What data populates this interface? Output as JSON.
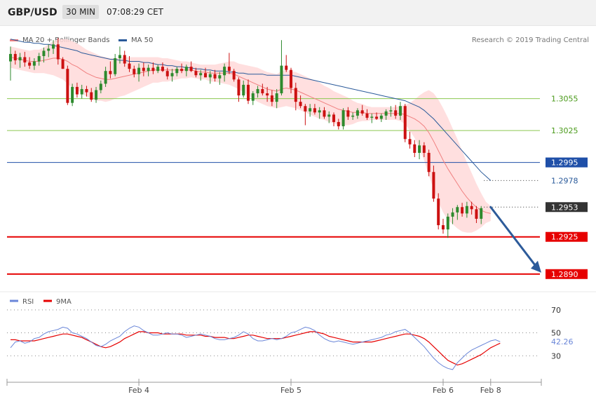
{
  "header": {
    "symbol": "GBP/USD",
    "timeframe": "30 MIN",
    "time": "07:08:29 CET"
  },
  "legend": {
    "ma20_label": "MA 20 + Bollinger Bands",
    "ma50_label": "MA 50",
    "rsi_label": "RSI",
    "ma9_label": "9MA",
    "credit": "Research © 2019 Trading Central"
  },
  "colors": {
    "bull": "#2d8a2d",
    "bear": "#cc1111",
    "ma20": "#f08080",
    "band_fill": "#ffd9d9",
    "ma50": "#2a5a9a",
    "resistance": "#8cc850",
    "pivot": "#1f4fa8",
    "support": "#e60000",
    "current": "#333333",
    "arrow": "#2d5b9a",
    "rsi": "#6a86d8",
    "rsi_ma": "#e60000"
  },
  "chart_data": [
    {
      "type": "candlestick",
      "panel": "price",
      "ylim": [
        1.2876,
        1.3124
      ],
      "x_ticks": [
        {
          "label": "Feb 4",
          "index": 27
        },
        {
          "label": "Feb 5",
          "index": 59
        },
        {
          "label": "Feb 6",
          "index": 91
        },
        {
          "label": "Feb 8",
          "index": 101
        }
      ],
      "levels": [
        {
          "value": 1.3055,
          "label": "1.3055",
          "kind": "resistance"
        },
        {
          "value": 1.3025,
          "label": "1.3025",
          "kind": "resistance"
        },
        {
          "value": 1.2995,
          "label": "1.2995",
          "kind": "pivot"
        },
        {
          "value": 1.2978,
          "label": "1.2978",
          "kind": "ma50"
        },
        {
          "value": 1.2953,
          "label": "1.2953",
          "kind": "current"
        },
        {
          "value": 1.2925,
          "label": "1.2925",
          "kind": "support"
        },
        {
          "value": 1.289,
          "label": "1.2890",
          "kind": "support"
        }
      ],
      "projection": {
        "from_index": 101,
        "from_value": 1.2953,
        "to_index": 110,
        "to_value": 1.289
      },
      "ohlc": [
        [
          1.309,
          1.3104,
          1.3072,
          1.3097
        ],
        [
          1.3097,
          1.31,
          1.3087,
          1.3091
        ],
        [
          1.3091,
          1.3098,
          1.3084,
          1.3094
        ],
        [
          1.3094,
          1.3099,
          1.3085,
          1.3089
        ],
        [
          1.3089,
          1.3094,
          1.3083,
          1.3086
        ],
        [
          1.3086,
          1.3093,
          1.3082,
          1.309
        ],
        [
          1.309,
          1.3098,
          1.3086,
          1.3095
        ],
        [
          1.3095,
          1.3103,
          1.3089,
          1.31
        ],
        [
          1.31,
          1.3106,
          1.3094,
          1.3102
        ],
        [
          1.3102,
          1.311,
          1.3097,
          1.3106
        ],
        [
          1.3106,
          1.3112,
          1.3087,
          1.3092
        ],
        [
          1.3092,
          1.3094,
          1.3083,
          1.3083
        ],
        [
          1.3083,
          1.3086,
          1.3049,
          1.3051
        ],
        [
          1.3051,
          1.3069,
          1.3048,
          1.3066
        ],
        [
          1.3066,
          1.307,
          1.3056,
          1.3059
        ],
        [
          1.3059,
          1.3068,
          1.3055,
          1.3064
        ],
        [
          1.3064,
          1.3067,
          1.3057,
          1.3061
        ],
        [
          1.3061,
          1.3065,
          1.3052,
          1.3054
        ],
        [
          1.3054,
          1.3066,
          1.3051,
          1.3063
        ],
        [
          1.3063,
          1.3072,
          1.306,
          1.3069
        ],
        [
          1.3069,
          1.3085,
          1.3066,
          1.3081
        ],
        [
          1.3081,
          1.309,
          1.3074,
          1.3078
        ],
        [
          1.3078,
          1.3097,
          1.3076,
          1.3093
        ],
        [
          1.3093,
          1.3104,
          1.3088,
          1.3096
        ],
        [
          1.3096,
          1.31,
          1.3085,
          1.3088
        ],
        [
          1.3088,
          1.3095,
          1.308,
          1.3083
        ],
        [
          1.3083,
          1.3086,
          1.3075,
          1.3078
        ],
        [
          1.3078,
          1.3088,
          1.3071,
          1.3084
        ],
        [
          1.3084,
          1.3089,
          1.3076,
          1.3081
        ],
        [
          1.3081,
          1.3087,
          1.3076,
          1.3084
        ],
        [
          1.3084,
          1.3089,
          1.3078,
          1.3081
        ],
        [
          1.3081,
          1.3087,
          1.3079,
          1.3085
        ],
        [
          1.3085,
          1.3089,
          1.308,
          1.3081
        ],
        [
          1.3081,
          1.3084,
          1.3073,
          1.3076
        ],
        [
          1.3076,
          1.3083,
          1.3071,
          1.3079
        ],
        [
          1.3079,
          1.3085,
          1.3076,
          1.3083
        ],
        [
          1.3083,
          1.3088,
          1.3079,
          1.3081
        ],
        [
          1.3081,
          1.3087,
          1.3076,
          1.3085
        ],
        [
          1.3085,
          1.309,
          1.308,
          1.3081
        ],
        [
          1.3081,
          1.3084,
          1.3075,
          1.3077
        ],
        [
          1.3077,
          1.3082,
          1.3072,
          1.3079
        ],
        [
          1.3079,
          1.3084,
          1.3075,
          1.3075
        ],
        [
          1.3075,
          1.3081,
          1.3069,
          1.3078
        ],
        [
          1.3078,
          1.3082,
          1.3071,
          1.3074
        ],
        [
          1.3074,
          1.308,
          1.3068,
          1.3077
        ],
        [
          1.3077,
          1.3088,
          1.3071,
          1.3085
        ],
        [
          1.3085,
          1.3098,
          1.3078,
          1.3081
        ],
        [
          1.3081,
          1.3083,
          1.3071,
          1.3073
        ],
        [
          1.3073,
          1.3075,
          1.3052,
          1.3058
        ],
        [
          1.3058,
          1.3072,
          1.3056,
          1.3068
        ],
        [
          1.3068,
          1.3073,
          1.305,
          1.3053
        ],
        [
          1.3053,
          1.3062,
          1.3049,
          1.306
        ],
        [
          1.306,
          1.3067,
          1.3056,
          1.3064
        ],
        [
          1.3064,
          1.3069,
          1.3058,
          1.306
        ],
        [
          1.306,
          1.3066,
          1.3052,
          1.3058
        ],
        [
          1.3058,
          1.3063,
          1.3048,
          1.3052
        ],
        [
          1.3052,
          1.3064,
          1.3046,
          1.306
        ],
        [
          1.306,
          1.311,
          1.3058,
          1.3086
        ],
        [
          1.3086,
          1.3096,
          1.308,
          1.3082
        ],
        [
          1.3082,
          1.3084,
          1.306,
          1.3065
        ],
        [
          1.3065,
          1.307,
          1.3044,
          1.3052
        ],
        [
          1.3052,
          1.3058,
          1.3046,
          1.3048
        ],
        [
          1.3048,
          1.305,
          1.303,
          1.3043
        ],
        [
          1.3043,
          1.305,
          1.3038,
          1.3046
        ],
        [
          1.3046,
          1.305,
          1.304,
          1.3042
        ],
        [
          1.3042,
          1.3047,
          1.3036,
          1.3044
        ],
        [
          1.3044,
          1.3047,
          1.3036,
          1.3038
        ],
        [
          1.3038,
          1.3043,
          1.3032,
          1.304
        ],
        [
          1.304,
          1.3042,
          1.3029,
          1.3033
        ],
        [
          1.3033,
          1.3036,
          1.3026,
          1.3029
        ],
        [
          1.3029,
          1.3046,
          1.3026,
          1.3044
        ],
        [
          1.3044,
          1.3047,
          1.3035,
          1.3038
        ],
        [
          1.3038,
          1.3042,
          1.3035,
          1.3039
        ],
        [
          1.3039,
          1.3046,
          1.3036,
          1.3044
        ],
        [
          1.3044,
          1.3049,
          1.3039,
          1.3041
        ],
        [
          1.3041,
          1.3045,
          1.3035,
          1.3037
        ],
        [
          1.3037,
          1.3041,
          1.3032,
          1.3038
        ],
        [
          1.3038,
          1.3042,
          1.3035,
          1.3036
        ],
        [
          1.3036,
          1.3041,
          1.3033,
          1.3039
        ],
        [
          1.3039,
          1.3045,
          1.3035,
          1.3043
        ],
        [
          1.3043,
          1.3048,
          1.3038,
          1.3044
        ],
        [
          1.3044,
          1.3049,
          1.3036,
          1.3039
        ],
        [
          1.3039,
          1.3052,
          1.3035,
          1.3048
        ],
        [
          1.3048,
          1.305,
          1.3014,
          1.3017
        ],
        [
          1.3017,
          1.3024,
          1.3008,
          1.3012
        ],
        [
          1.3012,
          1.3016,
          1.3,
          1.3004
        ],
        [
          1.3004,
          1.3016,
          1.2998,
          1.3011
        ],
        [
          1.3011,
          1.3014,
          1.3,
          1.3004
        ],
        [
          1.3004,
          1.3007,
          1.2982,
          1.2986
        ],
        [
          1.2986,
          1.2992,
          1.2958,
          1.2961
        ],
        [
          1.2961,
          1.2966,
          1.2932,
          1.2936
        ],
        [
          1.2936,
          1.2942,
          1.2928,
          1.2932
        ],
        [
          1.2932,
          1.2947,
          1.2924,
          1.2944
        ],
        [
          1.2944,
          1.2952,
          1.2937,
          1.2948
        ],
        [
          1.2948,
          1.2955,
          1.2941,
          1.2953
        ],
        [
          1.2953,
          1.2957,
          1.2944,
          1.2947
        ],
        [
          1.2947,
          1.2958,
          1.2943,
          1.2954
        ],
        [
          1.2954,
          1.2958,
          1.2946,
          1.2951
        ],
        [
          1.2951,
          1.2954,
          1.2938,
          1.2942
        ],
        [
          1.2942,
          1.2954,
          1.2937,
          1.2952
        ]
      ],
      "ma20": [
        1.3094,
        1.3093,
        1.3092,
        1.3091,
        1.309,
        1.309,
        1.309,
        1.3091,
        1.3092,
        1.3093,
        1.3093,
        1.3092,
        1.309,
        1.3087,
        1.3085,
        1.3082,
        1.3079,
        1.3077,
        1.3075,
        1.3074,
        1.3073,
        1.3073,
        1.3074,
        1.3075,
        1.3076,
        1.3077,
        1.3078,
        1.3079,
        1.308,
        1.3081,
        1.3082,
        1.3082,
        1.3082,
        1.3082,
        1.3082,
        1.3082,
        1.3082,
        1.3082,
        1.3082,
        1.3081,
        1.308,
        1.308,
        1.3079,
        1.3079,
        1.3079,
        1.3079,
        1.3079,
        1.3078,
        1.3076,
        1.3074,
        1.3072,
        1.307,
        1.3068,
        1.3066,
        1.3064,
        1.3063,
        1.3062,
        1.3064,
        1.3065,
        1.3064,
        1.3063,
        1.3061,
        1.3059,
        1.3057,
        1.3055,
        1.3053,
        1.3051,
        1.3049,
        1.3047,
        1.3045,
        1.3044,
        1.3043,
        1.3042,
        1.3042,
        1.3042,
        1.3041,
        1.3041,
        1.3041,
        1.3041,
        1.3041,
        1.3041,
        1.3041,
        1.3041,
        1.304,
        1.3038,
        1.3036,
        1.3033,
        1.3029,
        1.3023,
        1.3015,
        1.3006,
        1.2997,
        1.2989,
        1.2982,
        1.2975,
        1.2968,
        1.2962,
        1.2957,
        1.2953,
        1.295,
        1.2948,
        1.2947
      ],
      "band_width": [
        0.001,
        0.001,
        0.001,
        0.001,
        0.001,
        0.0011,
        0.0011,
        0.0012,
        0.0014,
        0.0016,
        0.0018,
        0.0019,
        0.0021,
        0.0022,
        0.0022,
        0.0022,
        0.0022,
        0.0022,
        0.0022,
        0.0021,
        0.0021,
        0.002,
        0.0019,
        0.0018,
        0.0018,
        0.0017,
        0.0016,
        0.0015,
        0.0014,
        0.0013,
        0.0012,
        0.0012,
        0.0011,
        0.0011,
        0.001,
        0.0009,
        0.0008,
        0.0008,
        0.0007,
        0.0007,
        0.0007,
        0.0007,
        0.0008,
        0.0008,
        0.0009,
        0.001,
        0.0011,
        0.0012,
        0.0012,
        0.0013,
        0.0014,
        0.0015,
        0.0016,
        0.0016,
        0.0016,
        0.0016,
        0.0016,
        0.0017,
        0.0017,
        0.0017,
        0.0017,
        0.0017,
        0.0017,
        0.0017,
        0.0017,
        0.0017,
        0.0016,
        0.0016,
        0.0015,
        0.0015,
        0.0014,
        0.0013,
        0.0011,
        0.0009,
        0.0008,
        0.0007,
        0.0006,
        0.0006,
        0.0006,
        0.0006,
        0.0006,
        0.0006,
        0.0007,
        0.0009,
        0.0013,
        0.0018,
        0.0025,
        0.0032,
        0.004,
        0.0045,
        0.0048,
        0.0049,
        0.0048,
        0.0045,
        0.0042,
        0.0038,
        0.0033,
        0.0028,
        0.0022,
        0.0016,
        0.001,
        0.0007
      ],
      "ma50": [
        1.3111,
        1.311,
        1.3109,
        1.3108,
        1.3108,
        1.3107,
        1.3107,
        1.3106,
        1.3106,
        1.3105,
        1.3104,
        1.3103,
        1.3102,
        1.3101,
        1.31,
        1.3098,
        1.3097,
        1.3096,
        1.3095,
        1.3094,
        1.3093,
        1.3092,
        1.3092,
        1.3091,
        1.3091,
        1.309,
        1.309,
        1.309,
        1.3089,
        1.3089,
        1.3088,
        1.3087,
        1.3087,
        1.3086,
        1.3086,
        1.3085,
        1.3085,
        1.3084,
        1.3084,
        1.3083,
        1.3083,
        1.3082,
        1.3082,
        1.3081,
        1.3081,
        1.3081,
        1.308,
        1.308,
        1.3079,
        1.3079,
        1.3078,
        1.3078,
        1.3078,
        1.3078,
        1.3077,
        1.3077,
        1.3077,
        1.3077,
        1.3077,
        1.3077,
        1.3076,
        1.3075,
        1.3074,
        1.3073,
        1.3072,
        1.3071,
        1.307,
        1.3069,
        1.3068,
        1.3067,
        1.3066,
        1.3065,
        1.3064,
        1.3063,
        1.3062,
        1.3061,
        1.306,
        1.3059,
        1.3058,
        1.3057,
        1.3056,
        1.3055,
        1.3054,
        1.3053,
        1.3051,
        1.3049,
        1.3047,
        1.3044,
        1.304,
        1.3036,
        1.3031,
        1.3026,
        1.3021,
        1.3016,
        1.3011,
        1.3006,
        1.3001,
        1.2996,
        1.2991,
        1.2986,
        1.2982,
        1.2978
      ]
    },
    {
      "type": "line",
      "panel": "rsi",
      "ylim": [
        10,
        76
      ],
      "y_ticks": [
        70,
        50,
        30
      ],
      "current_label": "42.26",
      "series": [
        {
          "name": "RSI",
          "values": [
            37,
            42,
            43,
            41,
            42,
            45,
            46,
            49,
            51,
            52,
            53,
            55,
            54,
            50,
            49,
            47,
            45,
            42,
            39,
            38,
            40,
            43,
            45,
            47,
            51,
            54,
            56,
            55,
            52,
            50,
            48,
            48,
            49,
            50,
            49,
            49,
            48,
            46,
            47,
            48,
            49,
            48,
            47,
            45,
            44,
            44,
            45,
            46,
            48,
            51,
            49,
            45,
            43,
            43,
            44,
            45,
            44,
            45,
            47,
            50,
            51,
            53,
            55,
            54,
            52,
            48,
            45,
            43,
            42,
            43,
            42,
            41,
            40,
            41,
            42,
            43,
            44,
            45,
            46,
            48,
            49,
            51,
            52,
            53,
            50,
            46,
            42,
            38,
            33,
            28,
            24,
            21,
            19,
            18,
            24,
            28,
            32,
            35,
            37,
            39,
            41,
            43,
            44,
            42.26
          ]
        },
        {
          "name": "9MA",
          "values": [
            44,
            44,
            43,
            43,
            43,
            43,
            44,
            45,
            46,
            47,
            48,
            49,
            49,
            48,
            47,
            46,
            44,
            42,
            40,
            38,
            37,
            38,
            40,
            42,
            45,
            47,
            49,
            51,
            51,
            50,
            50,
            50,
            49,
            49,
            49,
            49,
            49,
            48,
            48,
            48,
            48,
            47,
            47,
            46,
            46,
            46,
            45,
            45,
            46,
            47,
            48,
            48,
            47,
            46,
            45,
            45,
            45,
            45,
            46,
            47,
            48,
            49,
            50,
            51,
            51,
            50,
            49,
            47,
            46,
            45,
            44,
            43,
            42,
            42,
            42,
            42,
            42,
            43,
            44,
            45,
            46,
            47,
            48,
            49,
            49,
            48,
            47,
            45,
            42,
            38,
            34,
            30,
            26,
            24,
            22,
            23,
            25,
            27,
            29,
            31,
            34,
            37,
            39,
            41
          ]
        }
      ],
      "levels": [
        70,
        50,
        30
      ]
    }
  ]
}
